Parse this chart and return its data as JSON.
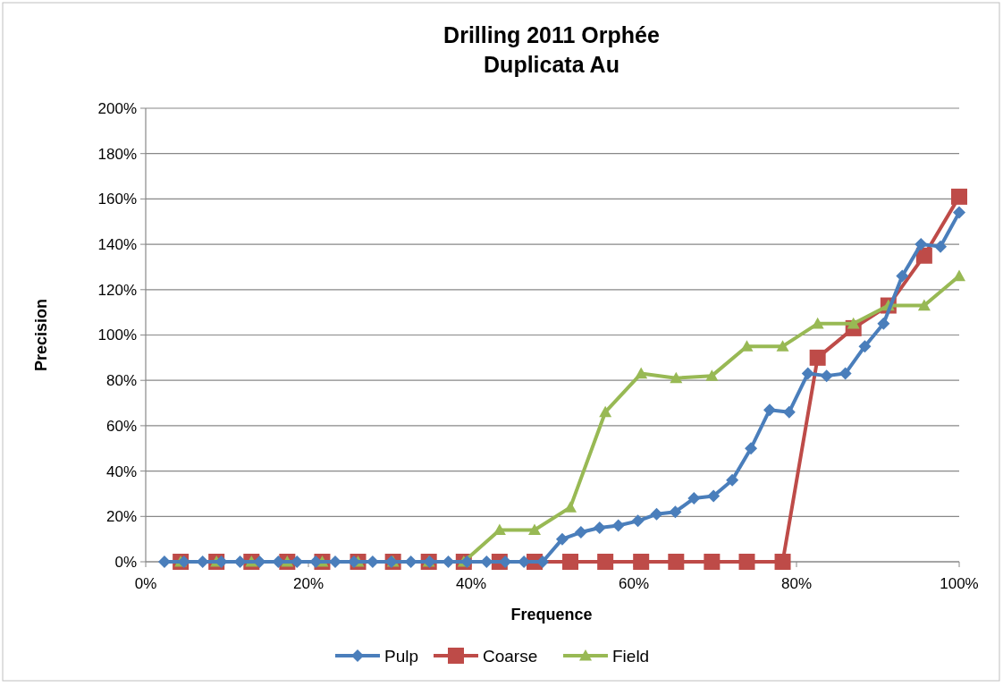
{
  "chart_data": {
    "type": "line",
    "title": "Drilling 2011 Orphée",
    "subtitle": "Duplicata Au",
    "xlabel": "Frequence",
    "ylabel": "Precision",
    "xlim": [
      0,
      100
    ],
    "xticks": [
      {
        "value": 0,
        "label": "0%"
      },
      {
        "value": 20,
        "label": "20%"
      },
      {
        "value": 40,
        "label": "40%"
      },
      {
        "value": 60,
        "label": "60%"
      },
      {
        "value": 80,
        "label": "80%"
      },
      {
        "value": 100,
        "label": "100%"
      }
    ],
    "ylim": [
      0,
      200
    ],
    "yticks": [
      {
        "value": 0,
        "label": "0%"
      },
      {
        "value": 20,
        "label": "20%"
      },
      {
        "value": 40,
        "label": "40%"
      },
      {
        "value": 60,
        "label": "60%"
      },
      {
        "value": 80,
        "label": "80%"
      },
      {
        "value": 100,
        "label": "100%"
      },
      {
        "value": 120,
        "label": "120%"
      },
      {
        "value": 140,
        "label": "140%"
      },
      {
        "value": 160,
        "label": "160%"
      },
      {
        "value": 180,
        "label": "180%"
      },
      {
        "value": 200,
        "label": "200%"
      }
    ],
    "grid": "y",
    "legend": "bottom",
    "line_style": "solid",
    "series": [
      {
        "name": "Pulp",
        "color": "#4a7ebb",
        "marker": "diamond",
        "x": [
          2.3,
          4.7,
          7.0,
          9.3,
          11.6,
          14.0,
          16.3,
          18.6,
          20.9,
          23.3,
          25.6,
          27.9,
          30.2,
          32.6,
          34.9,
          37.2,
          39.5,
          41.9,
          44.2,
          46.5,
          48.8,
          51.2,
          53.5,
          55.8,
          58.1,
          60.5,
          62.8,
          65.1,
          67.4,
          69.8,
          72.1,
          74.4,
          76.7,
          79.1,
          81.4,
          83.7,
          86.0,
          88.4,
          90.7,
          93.0,
          95.3,
          97.7,
          100
        ],
        "values": [
          0,
          0,
          0,
          0,
          0,
          0,
          0,
          0,
          0,
          0,
          0,
          0,
          0,
          0,
          0,
          0,
          0,
          0,
          0,
          0,
          0,
          10,
          13,
          15,
          16,
          18,
          21,
          22,
          28,
          29,
          36,
          50,
          67,
          66,
          83,
          82,
          83,
          95,
          105,
          126,
          140,
          139,
          154
        ]
      },
      {
        "name": "Coarse",
        "color": "#be4b48",
        "marker": "square",
        "x": [
          4.3,
          8.7,
          13.0,
          17.4,
          21.7,
          26.1,
          30.4,
          34.8,
          39.1,
          43.5,
          47.8,
          52.2,
          56.5,
          60.9,
          65.2,
          69.6,
          73.9,
          78.3,
          82.6,
          87.0,
          91.3,
          95.7,
          100
        ],
        "values": [
          0,
          0,
          0,
          0,
          0,
          0,
          0,
          0,
          0,
          0,
          0,
          0,
          0,
          0,
          0,
          0,
          0,
          0,
          90,
          103,
          113,
          135,
          161
        ]
      },
      {
        "name": "Field",
        "color": "#98b954",
        "marker": "triangle",
        "x": [
          4.3,
          8.7,
          13.0,
          17.4,
          21.7,
          26.1,
          30.4,
          34.8,
          39.1,
          43.5,
          47.8,
          52.2,
          56.5,
          60.9,
          65.2,
          69.6,
          73.9,
          78.3,
          82.6,
          87.0,
          91.3,
          95.7,
          100
        ],
        "values": [
          0,
          0,
          0,
          0,
          0,
          0,
          0,
          0,
          0,
          14,
          14,
          24,
          66,
          83,
          81,
          82,
          95,
          95,
          105,
          105,
          113,
          113,
          126
        ]
      }
    ]
  }
}
